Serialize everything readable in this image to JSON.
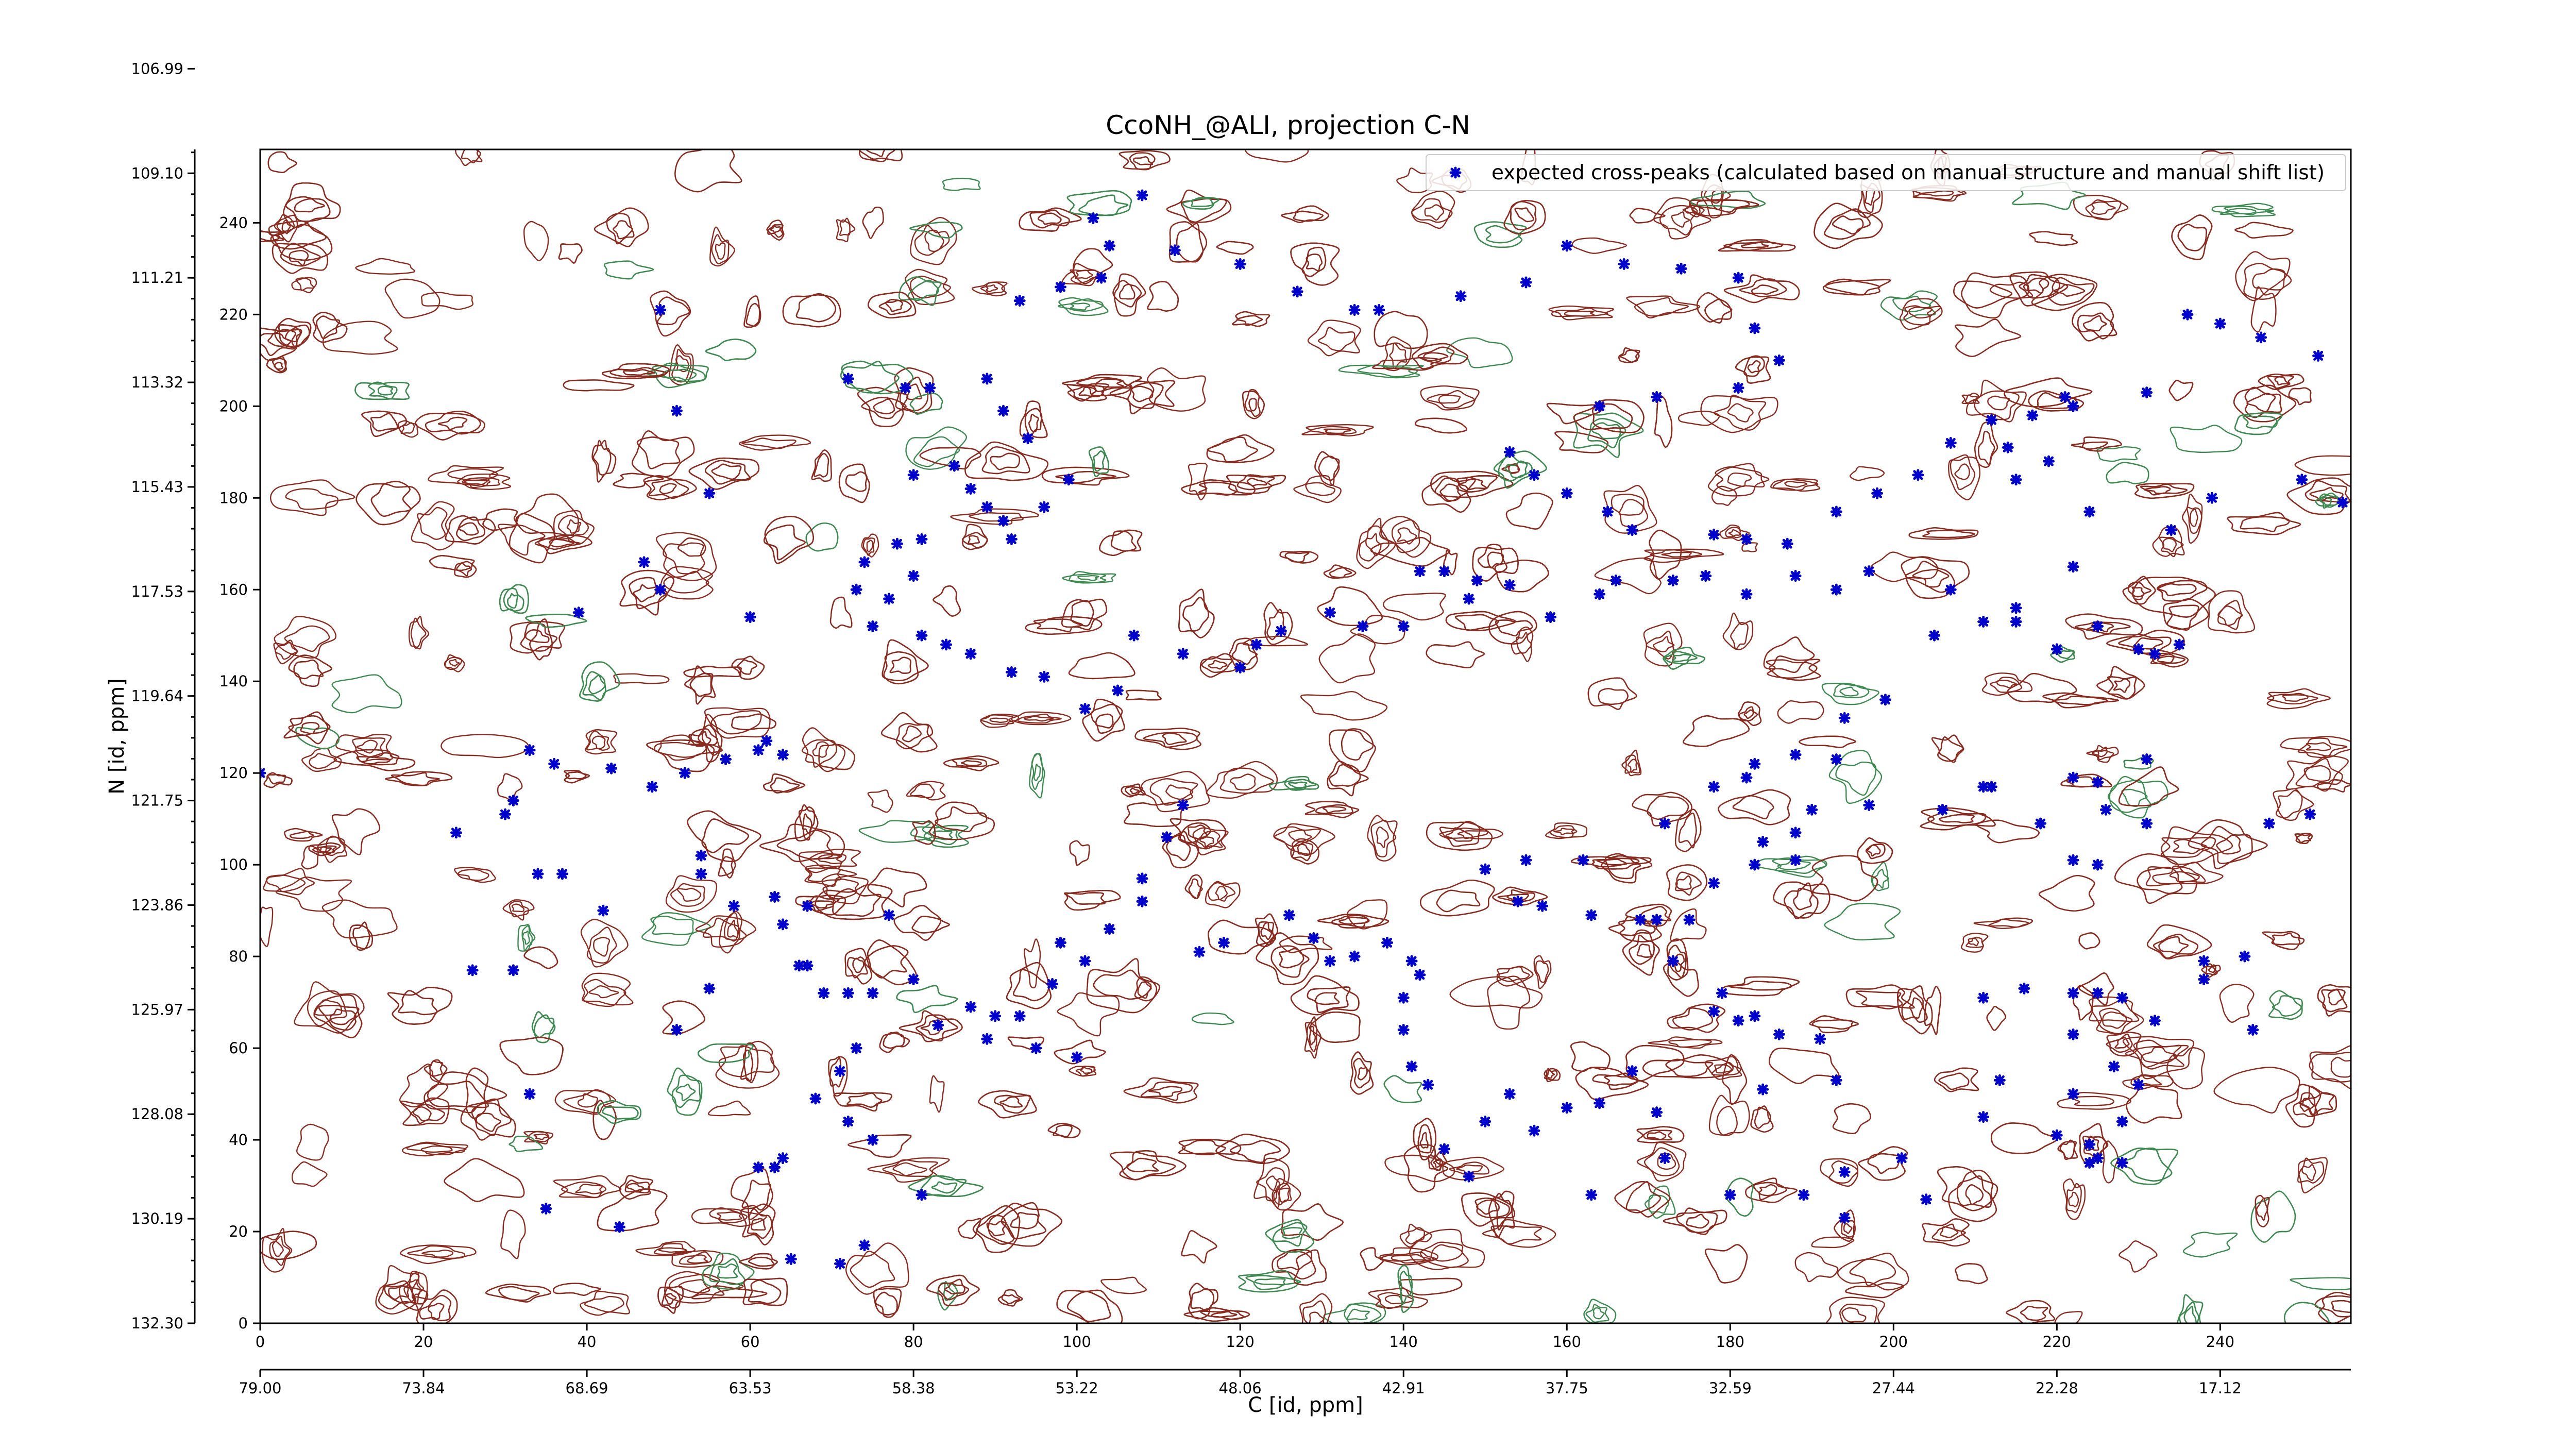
{
  "chart_data": {
    "type": "scatter",
    "title": "CcoNH_@ALI, projection C-N",
    "xlabel": "C [id, ppm]",
    "ylabel": "N [id, ppm]",
    "xlim": [
      0,
      256
    ],
    "ylim": [
      0,
      256
    ],
    "x_index_ticks": [
      "0",
      "20",
      "40",
      "60",
      "80",
      "100",
      "120",
      "140",
      "160",
      "180",
      "200",
      "220",
      "240"
    ],
    "x_ppm_ticks": [
      "79.00",
      "73.84",
      "68.69",
      "63.53",
      "58.38",
      "53.22",
      "48.06",
      "42.91",
      "37.75",
      "32.59",
      "27.44",
      "22.28",
      "17.12"
    ],
    "y_index_ticks": [
      "0",
      "20",
      "40",
      "60",
      "80",
      "100",
      "120",
      "140",
      "160",
      "180",
      "200",
      "220",
      "240"
    ],
    "y_ppm_ticks": [
      "132.30",
      "130.19",
      "128.08",
      "125.97",
      "123.86",
      "121.75",
      "119.64",
      "117.53",
      "115.43",
      "113.32",
      "111.21",
      "109.10",
      "106.99"
    ],
    "contour_colors": {
      "positive": "#8b2a1f",
      "negative": "#3d8a50"
    },
    "legend": {
      "placement": "top-right",
      "marker_color": "#0000cc"
    },
    "series": [
      {
        "name": "expected cross-peaks (calculated based on manual structure and manual shift list)",
        "color": "#0000cc",
        "points": [
          [
            0,
            120
          ],
          [
            49,
            221
          ],
          [
            51,
            199
          ],
          [
            55,
            181
          ],
          [
            47,
            166
          ],
          [
            49,
            160
          ],
          [
            39,
            155
          ],
          [
            60,
            154
          ],
          [
            43,
            121
          ],
          [
            31,
            114
          ],
          [
            33,
            125
          ],
          [
            36,
            122
          ],
          [
            24,
            107
          ],
          [
            30,
            111
          ],
          [
            37,
            98
          ],
          [
            34,
            98
          ],
          [
            42,
            90
          ],
          [
            48,
            117
          ],
          [
            52,
            120
          ],
          [
            57,
            123
          ],
          [
            61,
            125
          ],
          [
            64,
            124
          ],
          [
            62,
            127
          ],
          [
            54,
            102
          ],
          [
            54,
            98
          ],
          [
            58,
            91
          ],
          [
            63,
            93
          ],
          [
            67,
            91
          ],
          [
            64,
            87
          ],
          [
            51,
            64
          ],
          [
            55,
            73
          ],
          [
            26,
            77
          ],
          [
            31,
            77
          ],
          [
            33,
            50
          ],
          [
            35,
            25
          ],
          [
            44,
            21
          ],
          [
            61,
            34
          ],
          [
            63,
            34
          ],
          [
            64,
            36
          ],
          [
            65,
            14
          ],
          [
            68,
            49
          ],
          [
            71,
            55
          ],
          [
            72,
            44
          ],
          [
            75,
            40
          ],
          [
            74,
            17
          ],
          [
            71,
            13
          ],
          [
            81,
            28
          ],
          [
            66,
            78
          ],
          [
            67,
            78
          ],
          [
            69,
            72
          ],
          [
            72,
            72
          ],
          [
            75,
            72
          ],
          [
            73,
            60
          ],
          [
            77,
            89
          ],
          [
            80,
            75
          ],
          [
            83,
            65
          ],
          [
            87,
            69
          ],
          [
            90,
            67
          ],
          [
            93,
            67
          ],
          [
            89,
            62
          ],
          [
            97,
            74
          ],
          [
            95,
            60
          ],
          [
            100,
            58
          ],
          [
            98,
            83
          ],
          [
            101,
            79
          ],
          [
            104,
            86
          ],
          [
            108,
            92
          ],
          [
            108,
            97
          ],
          [
            113,
            113
          ],
          [
            111,
            106
          ],
          [
            115,
            81
          ],
          [
            118,
            83
          ],
          [
            126,
            89
          ],
          [
            129,
            84
          ],
          [
            131,
            79
          ],
          [
            134,
            80
          ],
          [
            138,
            83
          ],
          [
            141,
            79
          ],
          [
            142,
            76
          ],
          [
            140,
            71
          ],
          [
            140,
            64
          ],
          [
            141,
            56
          ],
          [
            143,
            52
          ],
          [
            153,
            50
          ],
          [
            156,
            42
          ],
          [
            150,
            44
          ],
          [
            145,
            38
          ],
          [
            148,
            32
          ],
          [
            160,
            47
          ],
          [
            164,
            48
          ],
          [
            163,
            28
          ],
          [
            172,
            36
          ],
          [
            171,
            46
          ],
          [
            168,
            55
          ],
          [
            173,
            79
          ],
          [
            179,
            72
          ],
          [
            181,
            66
          ],
          [
            178,
            68
          ],
          [
            183,
            67
          ],
          [
            186,
            63
          ],
          [
            191,
            62
          ],
          [
            193,
            53
          ],
          [
            184,
            51
          ],
          [
            180,
            28
          ],
          [
            189,
            28
          ],
          [
            194,
            33
          ],
          [
            194,
            23
          ],
          [
            204,
            27
          ],
          [
            201,
            36
          ],
          [
            211,
            71
          ],
          [
            216,
            73
          ],
          [
            222,
            72
          ],
          [
            225,
            72
          ],
          [
            222,
            63
          ],
          [
            232,
            66
          ],
          [
            238,
            75
          ],
          [
            244,
            64
          ],
          [
            227,
            56
          ],
          [
            230,
            52
          ],
          [
            228,
            44
          ],
          [
            220,
            41
          ],
          [
            224,
            35
          ],
          [
            225,
            36
          ],
          [
            228,
            35
          ],
          [
            224,
            39
          ],
          [
            211,
            45
          ],
          [
            222,
            50
          ],
          [
            213,
            53
          ],
          [
            228,
            71
          ],
          [
            238,
            79
          ],
          [
            243,
            80
          ],
          [
            225,
            100
          ],
          [
            222,
            101
          ],
          [
            218,
            109
          ],
          [
            211,
            117
          ],
          [
            222,
            119
          ],
          [
            225,
            118
          ],
          [
            231,
            123
          ],
          [
            246,
            109
          ],
          [
            251,
            111
          ],
          [
            226,
            112
          ],
          [
            231,
            109
          ],
          [
            212,
            117
          ],
          [
            206,
            112
          ],
          [
            197,
            113
          ],
          [
            190,
            112
          ],
          [
            188,
            107
          ],
          [
            184,
            105
          ],
          [
            188,
            101
          ],
          [
            183,
            100
          ],
          [
            178,
            96
          ],
          [
            175,
            88
          ],
          [
            171,
            88
          ],
          [
            169,
            88
          ],
          [
            163,
            89
          ],
          [
            157,
            91
          ],
          [
            154,
            92
          ],
          [
            150,
            99
          ],
          [
            155,
            101
          ],
          [
            162,
            101
          ],
          [
            172,
            109
          ],
          [
            178,
            117
          ],
          [
            182,
            119
          ],
          [
            183,
            122
          ],
          [
            188,
            124
          ],
          [
            193,
            123
          ],
          [
            194,
            132
          ],
          [
            199,
            136
          ],
          [
            205,
            150
          ],
          [
            211,
            153
          ],
          [
            215,
            153
          ],
          [
            220,
            147
          ],
          [
            225,
            152
          ],
          [
            230,
            147
          ],
          [
            232,
            146
          ],
          [
            235,
            148
          ],
          [
            222,
            165
          ],
          [
            215,
            156
          ],
          [
            207,
            160
          ],
          [
            197,
            164
          ],
          [
            193,
            160
          ],
          [
            188,
            163
          ],
          [
            182,
            159
          ],
          [
            177,
            163
          ],
          [
            173,
            162
          ],
          [
            166,
            162
          ],
          [
            164,
            159
          ],
          [
            158,
            154
          ],
          [
            153,
            161
          ],
          [
            149,
            162
          ],
          [
            148,
            158
          ],
          [
            145,
            164
          ],
          [
            142,
            164
          ],
          [
            140,
            152
          ],
          [
            135,
            152
          ],
          [
            131,
            155
          ],
          [
            125,
            151
          ],
          [
            122,
            148
          ],
          [
            120,
            143
          ],
          [
            113,
            146
          ],
          [
            107,
            150
          ],
          [
            105,
            138
          ],
          [
            101,
            134
          ],
          [
            96,
            141
          ],
          [
            92,
            142
          ],
          [
            87,
            146
          ],
          [
            84,
            148
          ],
          [
            81,
            150
          ],
          [
            75,
            152
          ],
          [
            73,
            160
          ],
          [
            77,
            158
          ],
          [
            80,
            163
          ],
          [
            74,
            166
          ],
          [
            78,
            170
          ],
          [
            81,
            171
          ],
          [
            80,
            185
          ],
          [
            85,
            187
          ],
          [
            87,
            182
          ],
          [
            89,
            178
          ],
          [
            91,
            175
          ],
          [
            92,
            171
          ],
          [
            96,
            178
          ],
          [
            99,
            184
          ],
          [
            94,
            193
          ],
          [
            91,
            199
          ],
          [
            89,
            206
          ],
          [
            82,
            204
          ],
          [
            79,
            204
          ],
          [
            72,
            206
          ],
          [
            93,
            223
          ],
          [
            98,
            226
          ],
          [
            103,
            228
          ],
          [
            104,
            235
          ],
          [
            102,
            241
          ],
          [
            108,
            246
          ],
          [
            112,
            234
          ],
          [
            120,
            231
          ],
          [
            127,
            225
          ],
          [
            134,
            221
          ],
          [
            137,
            221
          ],
          [
            147,
            224
          ],
          [
            155,
            227
          ],
          [
            160,
            235
          ],
          [
            167,
            231
          ],
          [
            174,
            230
          ],
          [
            181,
            228
          ],
          [
            183,
            217
          ],
          [
            186,
            210
          ],
          [
            181,
            204
          ],
          [
            171,
            202
          ],
          [
            164,
            200
          ],
          [
            153,
            190
          ],
          [
            156,
            185
          ],
          [
            160,
            181
          ],
          [
            165,
            177
          ],
          [
            168,
            173
          ],
          [
            178,
            172
          ],
          [
            182,
            171
          ],
          [
            187,
            170
          ],
          [
            193,
            177
          ],
          [
            198,
            181
          ],
          [
            203,
            185
          ],
          [
            207,
            192
          ],
          [
            212,
            197
          ],
          [
            217,
            198
          ],
          [
            222,
            200
          ],
          [
            231,
            203
          ],
          [
            236,
            220
          ],
          [
            240,
            218
          ],
          [
            245,
            215
          ],
          [
            252,
            211
          ],
          [
            221,
            202
          ],
          [
            214,
            191
          ],
          [
            219,
            188
          ],
          [
            215,
            184
          ],
          [
            224,
            177
          ],
          [
            234,
            173
          ],
          [
            239,
            180
          ],
          [
            250,
            184
          ],
          [
            255,
            179
          ]
        ]
      }
    ]
  }
}
